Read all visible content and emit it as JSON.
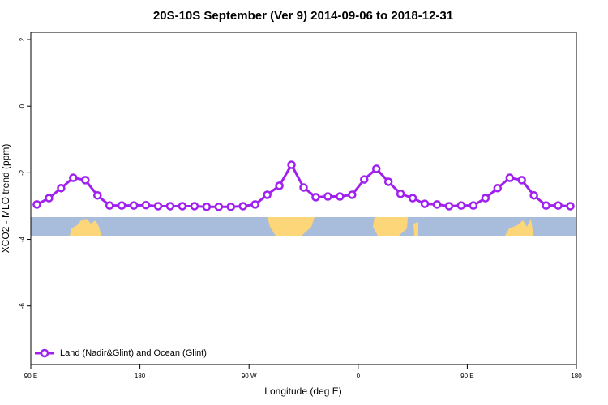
{
  "chart_data": {
    "type": "line",
    "title": "20S-10S September (Ver 9)   2014-09-06 to 2018-12-31",
    "x_label": "Longitude (deg E)",
    "y_label": "XCO2 - MLO trend (ppm)",
    "xlim": [
      90,
      540
    ],
    "ylim": [
      -7.76,
      2.22
    ],
    "xticks": [
      {
        "value": 90,
        "label": "90 E"
      },
      180,
      {
        "value": 270,
        "label": "90 W"
      },
      {
        "value": 360,
        "label": "0"
      },
      {
        "value": 450,
        "label": "90 E"
      },
      {
        "value": 540,
        "label": "180"
      }
    ],
    "yticks": [
      2,
      0,
      -2,
      -4,
      -6
    ],
    "legend": "bottom-left",
    "series": [
      {
        "name": "Land (Nadir&Glint) and Ocean (Glint)",
        "color": "#a020f0",
        "x": [
          95,
          105,
          115,
          125,
          135,
          145,
          155,
          165,
          175,
          185,
          195,
          205,
          215,
          225,
          235,
          245,
          255,
          265,
          275,
          285,
          295,
          305,
          315,
          325,
          335,
          345,
          355,
          365,
          375,
          385,
          395,
          405,
          415,
          425,
          435,
          445,
          455,
          465,
          475,
          485,
          495,
          505,
          515,
          525,
          535
        ],
        "values": [
          -2.95,
          -2.76,
          -2.46,
          -2.15,
          -2.22,
          -2.68,
          -2.98,
          -2.98,
          -2.98,
          -2.97,
          -3.0,
          -3.0,
          -3.0,
          -3.0,
          -3.02,
          -3.02,
          -3.02,
          -3.0,
          -2.95,
          -2.66,
          -2.39,
          -1.76,
          -2.44,
          -2.73,
          -2.71,
          -2.71,
          -2.66,
          -2.2,
          -1.88,
          -2.27,
          -2.63,
          -2.76,
          -2.93,
          -2.95,
          -3.0,
          -2.98,
          -2.98,
          -2.76,
          -2.46,
          -2.15,
          -2.22,
          -2.68,
          -2.98,
          -2.98,
          -3.0
        ]
      }
    ]
  }
}
